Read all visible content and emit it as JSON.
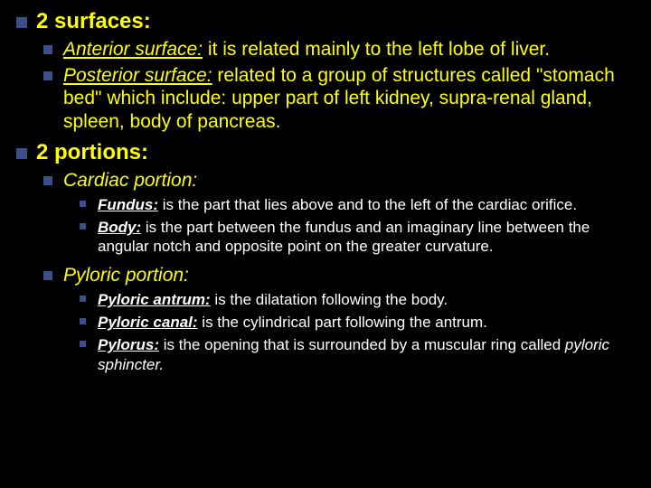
{
  "colors": {
    "background": "#000000",
    "text_main": "#ffff00",
    "text_sub": "#ffffff",
    "bullet_square": "#3d4f8a"
  },
  "typography": {
    "font_family": "Arial, sans-serif",
    "level1_size": 24,
    "level2_size": 21,
    "level3_size": 21,
    "level4_size": 17
  },
  "heading1": "2 surfaces:",
  "surfaces": {
    "anterior_label": "Anterior surface:",
    "anterior_text": "  it is related mainly to the left lobe of liver.",
    "posterior_label": "Posterior surface:",
    "posterior_text": " related to a group of structures called \"stomach bed\" which include: upper part of left kidney, supra-renal gland, spleen, body of pancreas."
  },
  "heading2": "2 portions:",
  "portions": {
    "cardiac_label": "Cardiac portion:",
    "cardiac": {
      "fundus_label": "Fundus:",
      "fundus_text": " is the part that lies above and to the left of the cardiac orifice.",
      "body_label": "Body:",
      "body_text": " is the part between the fundus and an imaginary line between the angular notch and opposite point on the greater curvature."
    },
    "pyloric_label": "Pyloric portion:",
    "pyloric": {
      "antrum_label": "Pyloric antrum:",
      "antrum_text": " is the dilatation following the body.",
      "canal_label": "Pyloric canal:",
      "canal_text": " is the cylindrical part following the antrum.",
      "pylorus_label": "Pylorus:",
      "pylorus_text_a": " is the opening that is surrounded by a muscular ring called ",
      "pylorus_text_b": "pyloric sphincter.",
      "pylorus_text_c": ""
    }
  }
}
